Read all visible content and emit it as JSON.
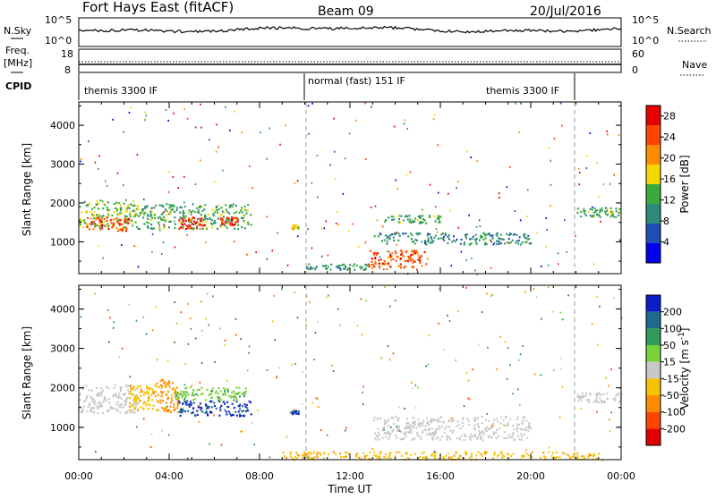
{
  "header": {
    "title": "Fort Hays East (fitACF)",
    "beam": "Beam 09",
    "date": "20/Jul/2016"
  },
  "top_panels": {
    "nsky_label": "N.Sky",
    "nsky_ticks": [
      "10^5",
      "10^0"
    ],
    "nsearch_label": "N.Search",
    "nsearch_ticks": [
      "10^5",
      "10^0"
    ],
    "freq_label_line1": "Freq.",
    "freq_label_line2": "[MHz]",
    "freq_ticks": [
      "18",
      "8"
    ],
    "nave_label": "Nave",
    "nave_ticks": [
      "60",
      "0"
    ],
    "cpid_label": "CPID",
    "cpid_segments": [
      "themis 3300 IF",
      "normal (fast) 151 IF",
      "themis 3300 IF"
    ]
  },
  "x_axis": {
    "label": "Time UT",
    "ticks": [
      "00:00",
      "04:00",
      "08:00",
      "12:00",
      "16:00",
      "20:00",
      "00:00"
    ]
  },
  "y_axis": {
    "label": "Slant Range [km]",
    "ticks": [
      "4000",
      "3000",
      "2000",
      "1000"
    ]
  },
  "power_scale": {
    "label": "Power [dB]",
    "ticks": [
      "28",
      "24",
      "20",
      "16",
      "12",
      "8",
      "4"
    ],
    "colors": [
      "#0000ee",
      "#1e4fb4",
      "#2f8a7a",
      "#3aab3a",
      "#f5d800",
      "#ff8c00",
      "#ff4500",
      "#e80000"
    ]
  },
  "velocity_scale": {
    "label": "Velocity [m s^-1]",
    "ticks": [
      "200",
      "100",
      "50",
      "15",
      "-15",
      "-50",
      "-100",
      "-200"
    ],
    "colors": [
      "#0a1ec8",
      "#1e6a8c",
      "#2f9a5a",
      "#7ad23a",
      "#c8c8c8",
      "#f5c400",
      "#ff8c00",
      "#ff4500",
      "#e00000"
    ]
  },
  "chart_data": [
    {
      "type": "heatmap",
      "title": "Power",
      "xlabel": "Time UT",
      "ylabel": "Slant Range [km]",
      "xlim": [
        "00:00",
        "24:00"
      ],
      "ylim": [
        180,
        4600
      ],
      "colorbar": {
        "label": "Power [dB]",
        "range": [
          0,
          30
        ]
      },
      "scatter_blobs": [
        {
          "t": [
            0.0,
            2.6
          ],
          "r": [
            1380,
            2100
          ],
          "value": 14
        },
        {
          "t": [
            0.3,
            2.2
          ],
          "r": [
            1300,
            1650
          ],
          "value": 24
        },
        {
          "t": [
            2.6,
            7.6
          ],
          "r": [
            1350,
            2000
          ],
          "value": 12
        },
        {
          "t": [
            4.4,
            5.6
          ],
          "r": [
            1350,
            1650
          ],
          "value": 28
        },
        {
          "t": [
            6.2,
            7.0
          ],
          "r": [
            1450,
            1650
          ],
          "value": 26
        },
        {
          "t": [
            9.4,
            9.7
          ],
          "r": [
            1350,
            1450
          ],
          "value": 18
        },
        {
          "t": [
            10.0,
            13.0
          ],
          "r": [
            300,
            450
          ],
          "value": 10
        },
        {
          "t": [
            12.8,
            15.4
          ],
          "r": [
            350,
            800
          ],
          "value": 24
        },
        {
          "t": [
            13.0,
            20.0
          ],
          "r": [
            950,
            1250
          ],
          "value": 10
        },
        {
          "t": [
            13.5,
            16.0
          ],
          "r": [
            1500,
            1700
          ],
          "value": 12
        },
        {
          "t": [
            22.0,
            24.0
          ],
          "r": [
            1650,
            1900
          ],
          "value": 12
        }
      ]
    },
    {
      "type": "heatmap",
      "title": "Velocity",
      "xlabel": "Time UT",
      "ylabel": "Slant Range [km]",
      "xlim": [
        "00:00",
        "24:00"
      ],
      "ylim": [
        180,
        4600
      ],
      "colorbar": {
        "label": "Velocity [m s^-1]",
        "range": [
          -200,
          200
        ]
      },
      "scatter_blobs": [
        {
          "t": [
            0.0,
            2.6
          ],
          "r": [
            1380,
            2100
          ],
          "value": 0
        },
        {
          "t": [
            2.2,
            3.4
          ],
          "r": [
            1450,
            2100
          ],
          "value": -40
        },
        {
          "t": [
            3.4,
            4.4
          ],
          "r": [
            1400,
            2250
          ],
          "value": -60
        },
        {
          "t": [
            4.4,
            7.6
          ],
          "r": [
            1300,
            1700
          ],
          "value": 200
        },
        {
          "t": [
            4.2,
            7.4
          ],
          "r": [
            1700,
            2050
          ],
          "value": 40
        },
        {
          "t": [
            9.4,
            9.7
          ],
          "r": [
            1350,
            1450
          ],
          "value": 200
        },
        {
          "t": [
            9.0,
            23.0
          ],
          "r": [
            200,
            400
          ],
          "value": -40
        },
        {
          "t": [
            13.0,
            20.0
          ],
          "r": [
            700,
            1300
          ],
          "value": 0
        },
        {
          "t": [
            22.0,
            24.0
          ],
          "r": [
            1650,
            1900
          ],
          "value": 0
        }
      ]
    }
  ]
}
